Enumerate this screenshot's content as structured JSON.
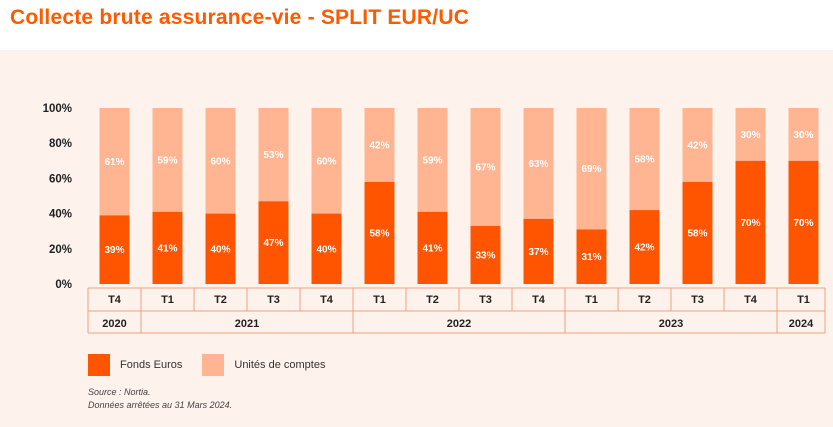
{
  "title": "Collecte brute assurance-vie - SPLIT EUR/UC",
  "colors": {
    "fonds_euros": "#ff5500",
    "unites_de_comptes": "#ffb592",
    "title": "#ff5a00",
    "background": "#fdf2ec"
  },
  "chart_data": {
    "type": "bar",
    "stacked": true,
    "title": "Collecte brute assurance-vie - SPLIT EUR/UC",
    "ylim": [
      0,
      100
    ],
    "yticks": [
      "0%",
      "20%",
      "40%",
      "60%",
      "80%",
      "100%"
    ],
    "quarters": [
      "T4",
      "T1",
      "T2",
      "T3",
      "T4",
      "T1",
      "T2",
      "T3",
      "T4",
      "T1",
      "T2",
      "T3",
      "T4",
      "T1"
    ],
    "years": [
      {
        "label": "2020",
        "span": 1
      },
      {
        "label": "2021",
        "span": 4
      },
      {
        "label": "2022",
        "span": 4
      },
      {
        "label": "2023",
        "span": 4
      },
      {
        "label": "2024",
        "span": 1
      }
    ],
    "series": [
      {
        "name": "Fonds Euros",
        "values": [
          39,
          41,
          40,
          47,
          40,
          58,
          41,
          33,
          37,
          31,
          42,
          58,
          70,
          70
        ],
        "labels": [
          "39%",
          "41%",
          "40%",
          "47%",
          "40%",
          "58%",
          "41%",
          "33%",
          "37%",
          "31%",
          "42%",
          "58%",
          "70%",
          "70%"
        ]
      },
      {
        "name": "Unités de comptes",
        "values": [
          61,
          59,
          60,
          53,
          60,
          42,
          59,
          67,
          63,
          69,
          58,
          42,
          30,
          30
        ],
        "labels": [
          "61%",
          "59%",
          "60%",
          "53%",
          "60%",
          "42%",
          "59%",
          "67%",
          "63%",
          "69%",
          "58%",
          "42%",
          "30%",
          "30%"
        ]
      }
    ]
  },
  "legend": {
    "fonds_euros": "Fonds Euros",
    "unites_de_comptes": "Unités de comptes"
  },
  "notes": {
    "source": "Source : Nortia.",
    "date": "Données arrêtées au 31 Mars 2024."
  }
}
